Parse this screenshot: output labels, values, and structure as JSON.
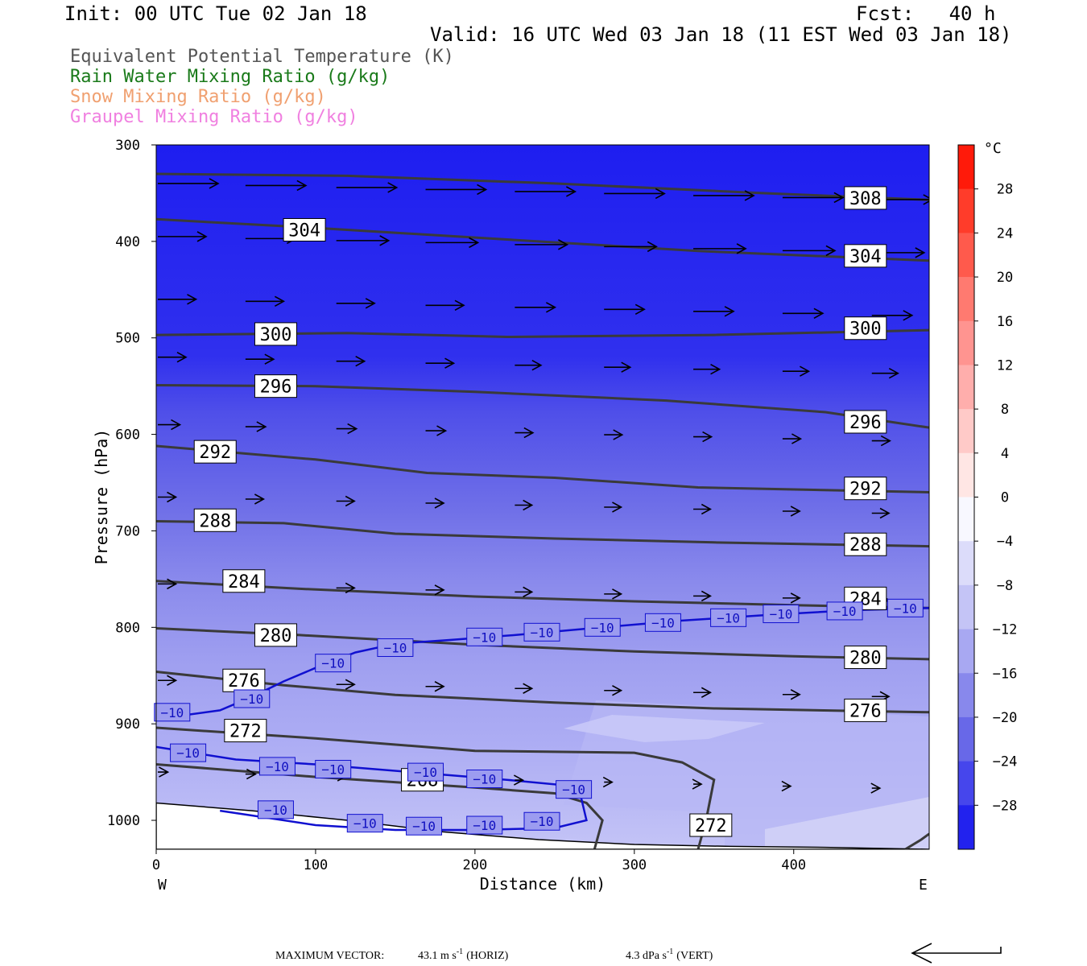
{
  "header": {
    "init": "Init: 00 UTC Tue 02 Jan 18",
    "fcst": "Fcst:   40 h",
    "valid": "Valid: 16 UTC Wed 03 Jan 18 (11 EST Wed 03 Jan 18)"
  },
  "legend": [
    {
      "label": "Equivalent Potential Temperature (K)",
      "color": "#555555"
    },
    {
      "label": "Rain Water Mixing Ratio (g/kg)",
      "color": "#1a7a1a"
    },
    {
      "label": "Snow Mixing Ratio (g/kg)",
      "color": "#f0a070"
    },
    {
      "label": "Graupel Mixing Ratio (g/kg)",
      "color": "#f080e0"
    }
  ],
  "chart_data": {
    "type": "cross-section",
    "xlabel": "Distance (km)",
    "ylabel": "Pressure (hPa)",
    "xlim": [
      0,
      485
    ],
    "ylim": [
      1030,
      300
    ],
    "x_ticks": [
      "0",
      "100",
      "200",
      "300",
      "400"
    ],
    "y_ticks": [
      "300",
      "400",
      "500",
      "600",
      "700",
      "800",
      "900",
      "1000"
    ],
    "x_tick_values": [
      0,
      100,
      200,
      300,
      400
    ],
    "y_tick_values": [
      300,
      400,
      500,
      600,
      700,
      800,
      900,
      1000
    ],
    "endpoints": {
      "left": "W",
      "right": "E"
    },
    "colorbar": {
      "unit": "°C",
      "labels": [
        "28",
        "24",
        "20",
        "16",
        "12",
        "8",
        "4",
        "0",
        "−4",
        "−8",
        "−12",
        "−16",
        "−20",
        "−24",
        "−28"
      ],
      "label_values": [
        28,
        24,
        20,
        16,
        12,
        8,
        4,
        0,
        -4,
        -8,
        -12,
        -16,
        -20,
        -24,
        -28
      ],
      "bins": [
        {
          "v": 30,
          "color": "#ff1a0a"
        },
        {
          "v": 26,
          "color": "#ff3c2a"
        },
        {
          "v": 22,
          "color": "#ff5a4c"
        },
        {
          "v": 18,
          "color": "#ff7a70"
        },
        {
          "v": 14,
          "color": "#ff9490"
        },
        {
          "v": 10,
          "color": "#ffaeac"
        },
        {
          "v": 6,
          "color": "#ffcac8"
        },
        {
          "v": 2,
          "color": "#ffe6e4"
        },
        {
          "v": -2,
          "color": "#f8f8ff"
        },
        {
          "v": -6,
          "color": "#dcdcfa"
        },
        {
          "v": -10,
          "color": "#c4c4f6"
        },
        {
          "v": -14,
          "color": "#a8a8f2"
        },
        {
          "v": -18,
          "color": "#8888ec"
        },
        {
          "v": -22,
          "color": "#6868e8"
        },
        {
          "v": -26,
          "color": "#4646ec"
        },
        {
          "v": -30,
          "color": "#2222ee"
        }
      ]
    },
    "theta_e_contours": [
      {
        "value": "308",
        "points": [
          [
            0,
            330
          ],
          [
            120,
            332
          ],
          [
            250,
            340
          ],
          [
            380,
            350
          ],
          [
            485,
            357
          ]
        ],
        "labels": [
          [
            445,
            355
          ]
        ]
      },
      {
        "value": "304",
        "points": [
          [
            0,
            377
          ],
          [
            100,
            386
          ],
          [
            220,
            398
          ],
          [
            340,
            410
          ],
          [
            485,
            420
          ]
        ],
        "labels": [
          [
            93,
            388
          ],
          [
            445,
            415
          ]
        ]
      },
      {
        "value": "300",
        "points": [
          [
            0,
            497
          ],
          [
            120,
            495
          ],
          [
            220,
            499
          ],
          [
            350,
            497
          ],
          [
            485,
            492
          ]
        ],
        "labels": [
          [
            75,
            496
          ],
          [
            445,
            490
          ]
        ]
      },
      {
        "value": "296",
        "points": [
          [
            0,
            549
          ],
          [
            100,
            550
          ],
          [
            200,
            556
          ],
          [
            320,
            565
          ],
          [
            420,
            577
          ],
          [
            485,
            593
          ]
        ],
        "labels": [
          [
            75,
            550
          ],
          [
            445,
            587
          ]
        ]
      },
      {
        "value": "292",
        "points": [
          [
            0,
            612
          ],
          [
            100,
            626
          ],
          [
            170,
            640
          ],
          [
            250,
            645
          ],
          [
            340,
            655
          ],
          [
            485,
            660
          ]
        ],
        "labels": [
          [
            37,
            618
          ],
          [
            445,
            656
          ]
        ]
      },
      {
        "value": "288",
        "points": [
          [
            0,
            690
          ],
          [
            80,
            692
          ],
          [
            150,
            703
          ],
          [
            250,
            708
          ],
          [
            350,
            712
          ],
          [
            485,
            716
          ]
        ],
        "labels": [
          [
            37,
            689
          ],
          [
            445,
            714
          ]
        ]
      },
      {
        "value": "284",
        "points": [
          [
            0,
            752
          ],
          [
            90,
            760
          ],
          [
            200,
            768
          ],
          [
            300,
            773
          ],
          [
            400,
            777
          ],
          [
            485,
            780
          ]
        ],
        "labels": [
          [
            55,
            752
          ],
          [
            445,
            770
          ]
        ]
      },
      {
        "value": "280",
        "points": [
          [
            0,
            801
          ],
          [
            90,
            808
          ],
          [
            200,
            818
          ],
          [
            300,
            825
          ],
          [
            400,
            830
          ],
          [
            485,
            833
          ]
        ],
        "labels": [
          [
            75,
            808
          ],
          [
            445,
            831
          ]
        ]
      },
      {
        "value": "276",
        "points": [
          [
            0,
            846
          ],
          [
            80,
            860
          ],
          [
            150,
            870
          ],
          [
            250,
            878
          ],
          [
            350,
            884
          ],
          [
            485,
            888
          ]
        ],
        "labels": [
          [
            55,
            855
          ],
          [
            445,
            886
          ]
        ]
      },
      {
        "value": "272",
        "points": [
          [
            0,
            904
          ],
          [
            100,
            915
          ],
          [
            200,
            928
          ],
          [
            300,
            930
          ],
          [
            330,
            940
          ],
          [
            350,
            958
          ],
          [
            345,
            1000
          ],
          [
            340,
            1030
          ]
        ],
        "labels": [
          [
            56,
            907
          ],
          [
            348,
            1005
          ]
        ]
      },
      {
        "value": "268",
        "points": [
          [
            0,
            942
          ],
          [
            100,
            955
          ],
          [
            200,
            966
          ],
          [
            250,
            972
          ],
          [
            270,
            982
          ],
          [
            280,
            1000
          ],
          [
            275,
            1030
          ]
        ],
        "labels": [
          [
            167,
            958
          ]
        ]
      },
      {
        "value": "",
        "points": [
          [
            470,
            1030
          ],
          [
            480,
            1020
          ],
          [
            485,
            1014
          ]
        ],
        "labels": []
      }
    ],
    "isotherm_minus10": {
      "value": "−10",
      "branches": [
        {
          "points": [
            [
              0,
              895
            ],
            [
              40,
              886
            ],
            [
              60,
              872
            ],
            [
              80,
              856
            ],
            [
              100,
              842
            ],
            [
              125,
              826
            ],
            [
              150,
              817
            ],
            [
              185,
              813
            ],
            [
              225,
              808
            ],
            [
              280,
              800
            ],
            [
              330,
              793
            ],
            [
              385,
              787
            ],
            [
              440,
              782
            ],
            [
              485,
              780
            ]
          ],
          "labels": [
            [
              10,
              888
            ],
            [
              60,
              874
            ],
            [
              111,
              837
            ],
            [
              150,
              821
            ],
            [
              206,
              810
            ],
            [
              242,
              805
            ],
            [
              280,
              800
            ],
            [
              318,
              795
            ],
            [
              359,
              790
            ],
            [
              392,
              786
            ],
            [
              432,
              783
            ],
            [
              470,
              780
            ]
          ]
        },
        {
          "points": [
            [
              0,
              924
            ],
            [
              50,
              937
            ],
            [
              100,
              942
            ],
            [
              160,
              950
            ],
            [
              220,
              958
            ],
            [
              265,
              965
            ],
            [
              270,
              1000
            ],
            [
              250,
              1008
            ],
            [
              200,
              1010
            ],
            [
              150,
              1010
            ],
            [
              100,
              1005
            ],
            [
              60,
              995
            ],
            [
              40,
              990
            ]
          ],
          "labels": [
            [
              20,
              930
            ],
            [
              76,
              944
            ],
            [
              111,
              947
            ],
            [
              169,
              950
            ],
            [
              206,
              957
            ],
            [
              262,
              968
            ],
            [
              242,
              1001
            ],
            [
              206,
              1005
            ],
            [
              168,
              1006
            ],
            [
              131,
              1003
            ],
            [
              75,
              989
            ]
          ]
        }
      ]
    },
    "terrain_boundary": [
      [
        0,
        982
      ],
      [
        60,
        990
      ],
      [
        120,
        1000
      ],
      [
        180,
        1012
      ],
      [
        240,
        1020
      ],
      [
        300,
        1025
      ],
      [
        360,
        1027
      ],
      [
        420,
        1028
      ],
      [
        485,
        1030
      ]
    ],
    "wind_vector_rows": [
      {
        "p": 340,
        "dx": [
          60,
          60,
          60,
          60,
          60,
          60,
          60,
          60,
          60
        ]
      },
      {
        "p": 395,
        "dx": [
          48,
          50,
          52,
          52,
          52,
          52,
          52,
          52,
          52
        ]
      },
      {
        "p": 460,
        "dx": [
          38,
          38,
          38,
          38,
          40,
          40,
          40,
          40,
          40
        ]
      },
      {
        "p": 520,
        "dx": [
          28,
          28,
          28,
          28,
          26,
          26,
          26,
          26,
          26
        ]
      },
      {
        "p": 590,
        "dx": [
          22,
          20,
          20,
          20,
          18,
          18,
          18,
          18,
          18
        ]
      },
      {
        "p": 665,
        "dx": [
          18,
          18,
          18,
          18,
          17,
          17,
          17,
          17,
          17
        ]
      },
      {
        "p": 755,
        "dx": [
          18,
          18,
          18,
          18,
          17,
          17,
          17,
          17,
          17
        ]
      },
      {
        "p": 855,
        "dx": [
          18,
          18,
          18,
          18,
          17,
          17,
          17,
          17,
          17
        ]
      },
      {
        "p": 950,
        "dx": [
          10,
          10,
          10,
          8,
          8,
          8,
          8,
          8,
          8
        ]
      }
    ],
    "max_vector": {
      "label": "MAXIMUM VECTOR:",
      "horiz_value": "43.1 m s",
      "horiz_unit": "(HORIZ)",
      "vert_value": "4.3 dPa s",
      "vert_unit": "(VERT)",
      "superscript": "-1"
    }
  }
}
